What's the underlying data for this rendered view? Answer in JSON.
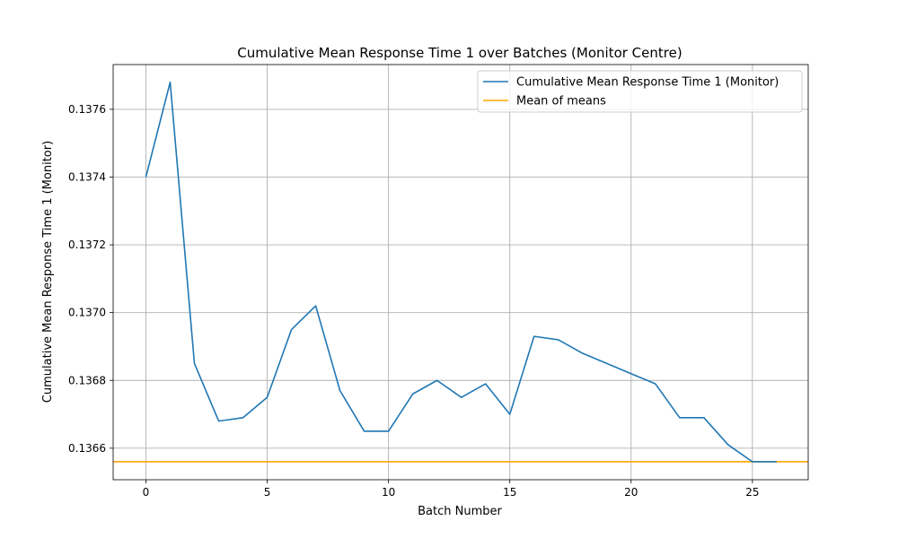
{
  "chart_data": {
    "type": "line",
    "title": "Cumulative Mean Response Time 1 over Batches (Monitor Centre)",
    "xlabel": "Batch Number",
    "ylabel": "Cumulative Mean Response Time 1 (Monitor)",
    "xlim": [
      -1.35,
      27.3
    ],
    "ylim": [
      0.136507,
      0.137732
    ],
    "xticks": [
      0,
      5,
      10,
      15,
      20,
      25
    ],
    "yticks": [
      0.1366,
      0.1368,
      0.137,
      0.1372,
      0.1374,
      0.1376
    ],
    "ytick_labels": [
      "0.1366",
      "0.1368",
      "0.1370",
      "0.1372",
      "0.1374",
      "0.1376"
    ],
    "grid": true,
    "legend_position": "upper-right",
    "series": [
      {
        "name": "Cumulative Mean Response Time 1 (Monitor)",
        "color": "#1f77b4",
        "x": [
          0,
          1,
          2,
          3,
          4,
          5,
          6,
          7,
          8,
          9,
          10,
          11,
          12,
          13,
          14,
          15,
          16,
          17,
          18,
          19,
          20,
          21,
          22,
          23,
          24,
          25,
          26
        ],
        "y": [
          0.1374,
          0.13768,
          0.13685,
          0.13668,
          0.13669,
          0.13675,
          0.13695,
          0.13702,
          0.13677,
          0.13665,
          0.13665,
          0.13676,
          0.1368,
          0.13675,
          0.13679,
          0.1367,
          0.13693,
          0.13692,
          0.13688,
          0.13685,
          0.13682,
          0.13679,
          0.13669,
          0.13669,
          0.13661,
          0.13656,
          0.13656
        ]
      }
    ],
    "hlines": [
      {
        "name": "Mean of means",
        "color": "#ffa500",
        "y": 0.13656
      }
    ]
  }
}
